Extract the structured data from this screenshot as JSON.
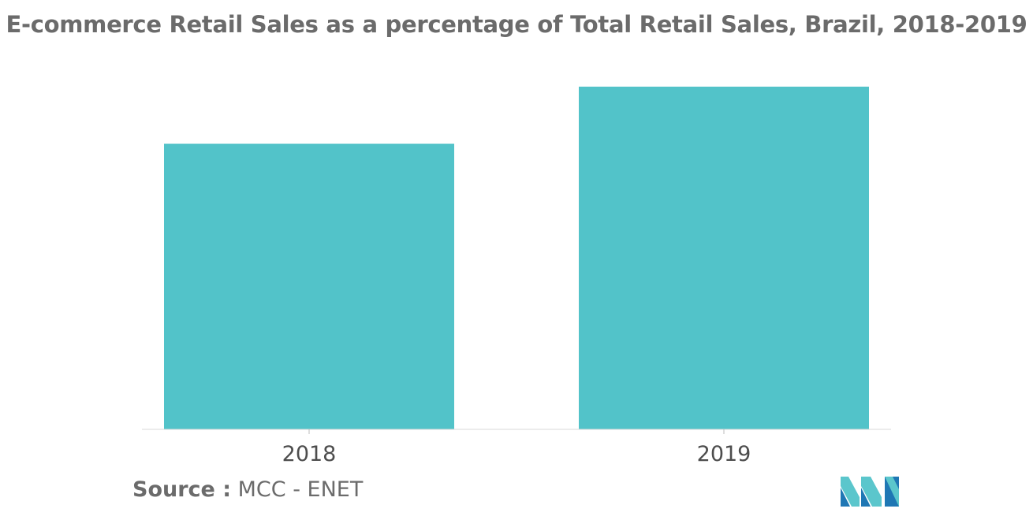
{
  "chart_data": {
    "type": "bar",
    "title": "E-commerce Retail Sales as a percentage of Total Retail Sales, Brazil, 2018-2019",
    "categories": [
      "2018",
      "2019"
    ],
    "values": [
      5.0,
      6.0
    ],
    "xlabel": "",
    "ylabel": "",
    "ylim": [
      0,
      6.0
    ],
    "grid": false,
    "bar_color": "#52c3c9"
  },
  "source": {
    "label": "Source :",
    "text": "MCC - ENET"
  },
  "logo": {
    "icon": "mordor-intelligence-logo",
    "colors": [
      "#5bc6cc",
      "#1f77b4"
    ]
  }
}
